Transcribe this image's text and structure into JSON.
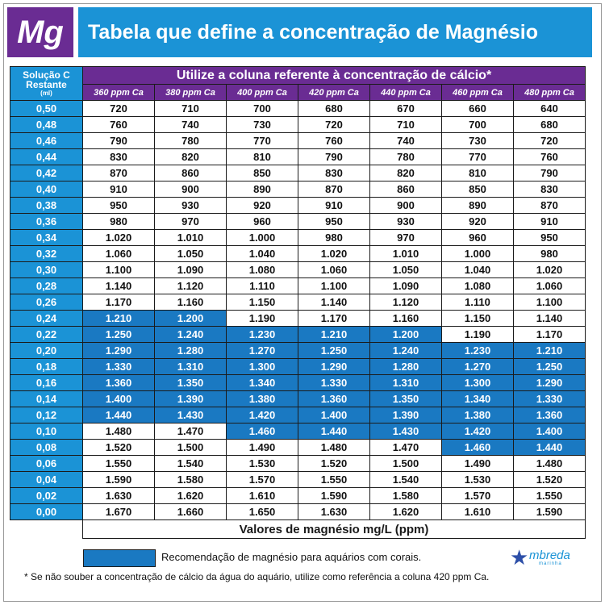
{
  "header": {
    "symbol": "Mg",
    "title": "Tabela que define a concentração de Magnésio"
  },
  "table": {
    "corner_label": "Solução C Restante",
    "corner_unit": "(ml)",
    "banner": "Utilize a coluna referente à concentração de cálcio*",
    "columns": [
      "360 ppm Ca",
      "380 ppm Ca",
      "400 ppm Ca",
      "420 ppm Ca",
      "440 ppm Ca",
      "460 ppm Ca",
      "480 ppm Ca"
    ],
    "rows": [
      {
        "label": "0,50",
        "values": [
          "720",
          "710",
          "700",
          "680",
          "670",
          "660",
          "640"
        ]
      },
      {
        "label": "0,48",
        "values": [
          "760",
          "740",
          "730",
          "720",
          "710",
          "700",
          "680"
        ]
      },
      {
        "label": "0,46",
        "values": [
          "790",
          "780",
          "770",
          "760",
          "740",
          "730",
          "720"
        ]
      },
      {
        "label": "0,44",
        "values": [
          "830",
          "820",
          "810",
          "790",
          "780",
          "770",
          "760"
        ]
      },
      {
        "label": "0,42",
        "values": [
          "870",
          "860",
          "850",
          "830",
          "820",
          "810",
          "790"
        ]
      },
      {
        "label": "0,40",
        "values": [
          "910",
          "900",
          "890",
          "870",
          "860",
          "850",
          "830"
        ]
      },
      {
        "label": "0,38",
        "values": [
          "950",
          "930",
          "920",
          "910",
          "900",
          "890",
          "870"
        ]
      },
      {
        "label": "0,36",
        "values": [
          "980",
          "970",
          "960",
          "950",
          "930",
          "920",
          "910"
        ]
      },
      {
        "label": "0,34",
        "values": [
          "1.020",
          "1.010",
          "1.000",
          "980",
          "970",
          "960",
          "950"
        ]
      },
      {
        "label": "0,32",
        "values": [
          "1.060",
          "1.050",
          "1.040",
          "1.020",
          "1.010",
          "1.000",
          "980"
        ]
      },
      {
        "label": "0,30",
        "values": [
          "1.100",
          "1.090",
          "1.080",
          "1.060",
          "1.050",
          "1.040",
          "1.020"
        ]
      },
      {
        "label": "0,28",
        "values": [
          "1.140",
          "1.120",
          "1.110",
          "1.100",
          "1.090",
          "1.080",
          "1.060"
        ]
      },
      {
        "label": "0,26",
        "values": [
          "1.170",
          "1.160",
          "1.150",
          "1.140",
          "1.120",
          "1.110",
          "1.100"
        ]
      },
      {
        "label": "0,24",
        "values": [
          "1.210",
          "1.200",
          "1.190",
          "1.170",
          "1.160",
          "1.150",
          "1.140"
        ]
      },
      {
        "label": "0,22",
        "values": [
          "1.250",
          "1.240",
          "1.230",
          "1.210",
          "1.200",
          "1.190",
          "1.170"
        ]
      },
      {
        "label": "0,20",
        "values": [
          "1.290",
          "1.280",
          "1.270",
          "1.250",
          "1.240",
          "1.230",
          "1.210"
        ]
      },
      {
        "label": "0,18",
        "values": [
          "1.330",
          "1.310",
          "1.300",
          "1.290",
          "1.280",
          "1.270",
          "1.250"
        ]
      },
      {
        "label": "0,16",
        "values": [
          "1.360",
          "1.350",
          "1.340",
          "1.330",
          "1.310",
          "1.300",
          "1.290"
        ]
      },
      {
        "label": "0,14",
        "values": [
          "1.400",
          "1.390",
          "1.380",
          "1.360",
          "1.350",
          "1.340",
          "1.330"
        ]
      },
      {
        "label": "0,12",
        "values": [
          "1.440",
          "1.430",
          "1.420",
          "1.400",
          "1.390",
          "1.380",
          "1.360"
        ]
      },
      {
        "label": "0,10",
        "values": [
          "1.480",
          "1.470",
          "1.460",
          "1.440",
          "1.430",
          "1.420",
          "1.400"
        ]
      },
      {
        "label": "0,08",
        "values": [
          "1.520",
          "1.500",
          "1.490",
          "1.480",
          "1.470",
          "1.460",
          "1.440"
        ]
      },
      {
        "label": "0,06",
        "values": [
          "1.550",
          "1.540",
          "1.530",
          "1.520",
          "1.500",
          "1.490",
          "1.480"
        ]
      },
      {
        "label": "0,04",
        "values": [
          "1.590",
          "1.580",
          "1.570",
          "1.550",
          "1.540",
          "1.530",
          "1.520"
        ]
      },
      {
        "label": "0,02",
        "values": [
          "1.630",
          "1.620",
          "1.610",
          "1.590",
          "1.580",
          "1.570",
          "1.550"
        ]
      },
      {
        "label": "0,00",
        "values": [
          "1.670",
          "1.660",
          "1.650",
          "1.630",
          "1.620",
          "1.610",
          "1.590"
        ]
      }
    ],
    "highlight_ranges": [
      {
        "column": "360 ppm Ca",
        "from": "0,24",
        "to": "0,12"
      },
      {
        "column": "380 ppm Ca",
        "from": "0,24",
        "to": "0,12"
      },
      {
        "column": "400 ppm Ca",
        "from": "0,22",
        "to": "0,10"
      },
      {
        "column": "420 ppm Ca",
        "from": "0,22",
        "to": "0,10"
      },
      {
        "column": "440 ppm Ca",
        "from": "0,22",
        "to": "0,10"
      },
      {
        "column": "460 ppm Ca",
        "from": "0,20",
        "to": "0,08"
      },
      {
        "column": "480 ppm Ca",
        "from": "0,20",
        "to": "0,08"
      }
    ],
    "unit_label": "Valores de magnésio mg/L (ppm)"
  },
  "legend": {
    "text": "Recomendação de magnésio para aquários com corais.",
    "swatch_color": "#1a79c2"
  },
  "footnote": "* Se não souber a concentração de cálcio da água do aquário, utilize como referência a coluna 420 ppm Ca.",
  "brand": {
    "name": "mbreda",
    "sub": "marinha"
  },
  "colors": {
    "purple": "#6a2c93",
    "blue": "#1b93d6",
    "highlight": "#1a79c2"
  }
}
